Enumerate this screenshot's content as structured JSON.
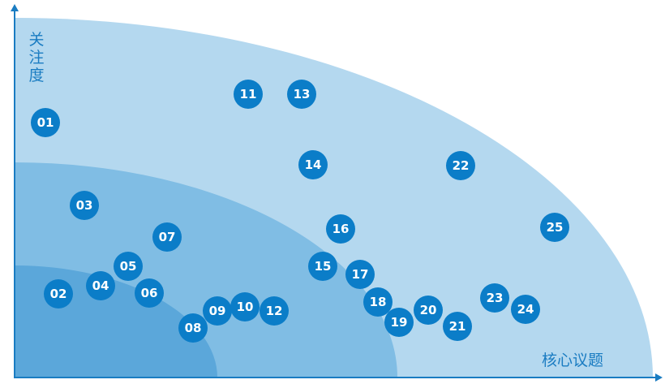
{
  "y_axis_label": "关注度",
  "x_axis_label": "核心议题",
  "nodes": [
    {
      "label": "01"
    },
    {
      "label": "02"
    },
    {
      "label": "03"
    },
    {
      "label": "04"
    },
    {
      "label": "05"
    },
    {
      "label": "06"
    },
    {
      "label": "07"
    },
    {
      "label": "08"
    },
    {
      "label": "09"
    },
    {
      "label": "10"
    },
    {
      "label": "11"
    },
    {
      "label": "12"
    },
    {
      "label": "13"
    },
    {
      "label": "14"
    },
    {
      "label": "15"
    },
    {
      "label": "16"
    },
    {
      "label": "17"
    },
    {
      "label": "18"
    },
    {
      "label": "19"
    },
    {
      "label": "20"
    },
    {
      "label": "21"
    },
    {
      "label": "22"
    },
    {
      "label": "23"
    },
    {
      "label": "24"
    },
    {
      "label": "25"
    }
  ]
}
